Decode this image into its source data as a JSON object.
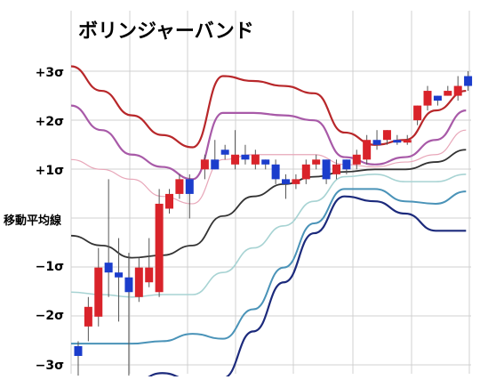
{
  "chart_data": {
    "type": "candlestick",
    "title": "ボリンジャーバンド",
    "band_labels": [
      "+3σ",
      "+2σ",
      "+1σ",
      "移動平均線",
      "−1σ",
      "−2σ",
      "−3σ"
    ],
    "ylim": [
      -4.2,
      4.2
    ],
    "xlim": [
      0,
      36
    ],
    "candles": [
      {
        "x": 0.7,
        "open": -2.6,
        "close": -2.8,
        "high": -2.5,
        "low": -3.2,
        "color": "blue"
      },
      {
        "x": 1.7,
        "open": -2.2,
        "close": -1.8,
        "high": -1.6,
        "low": -2.5,
        "color": "red"
      },
      {
        "x": 2.7,
        "open": -2.0,
        "close": -1.0,
        "high": -0.6,
        "low": -2.2,
        "color": "red"
      },
      {
        "x": 3.7,
        "open": -0.9,
        "close": -1.1,
        "high": 0.8,
        "low": -1.6,
        "color": "blue"
      },
      {
        "x": 4.7,
        "open": -1.1,
        "close": -1.2,
        "high": -0.4,
        "low": -2.1,
        "color": "blue"
      },
      {
        "x": 5.7,
        "open": -1.2,
        "close": -1.5,
        "high": -0.7,
        "low": -3.2,
        "color": "blue"
      },
      {
        "x": 6.7,
        "open": -1.6,
        "close": -1.0,
        "high": -0.8,
        "low": -1.7,
        "color": "red"
      },
      {
        "x": 7.7,
        "open": -1.3,
        "close": -1.0,
        "high": -0.4,
        "low": -1.4,
        "color": "red"
      },
      {
        "x": 8.7,
        "open": -1.5,
        "close": 0.3,
        "high": 0.6,
        "low": -1.6,
        "color": "red"
      },
      {
        "x": 9.7,
        "open": 0.2,
        "close": 0.5,
        "high": 0.6,
        "low": 0.1,
        "color": "red"
      },
      {
        "x": 10.7,
        "open": 0.5,
        "close": 0.8,
        "high": 0.9,
        "low": 0.4,
        "color": "red"
      },
      {
        "x": 11.7,
        "open": 0.8,
        "close": 0.5,
        "high": 0.9,
        "low": 0.0,
        "color": "blue"
      },
      {
        "x": 13.2,
        "open": 1.0,
        "close": 1.2,
        "high": 1.3,
        "low": 0.8,
        "color": "red"
      },
      {
        "x": 14.2,
        "open": 1.2,
        "close": 1.0,
        "high": 1.6,
        "low": 1.0,
        "color": "blue"
      },
      {
        "x": 15.2,
        "open": 1.3,
        "close": 1.4,
        "high": 1.5,
        "low": 1.2,
        "color": "blue"
      },
      {
        "x": 16.2,
        "open": 1.3,
        "close": 1.1,
        "high": 1.8,
        "low": 1.0,
        "color": "red"
      },
      {
        "x": 17.2,
        "open": 1.2,
        "close": 1.3,
        "high": 1.5,
        "low": 1.1,
        "color": "blue"
      },
      {
        "x": 18.2,
        "open": 1.1,
        "close": 1.3,
        "high": 1.4,
        "low": 1.0,
        "color": "red"
      },
      {
        "x": 19.2,
        "open": 1.2,
        "close": 1.1,
        "high": 1.2,
        "low": 1.0,
        "color": "blue"
      },
      {
        "x": 20.2,
        "open": 1.1,
        "close": 0.8,
        "high": 1.2,
        "low": 0.7,
        "color": "blue"
      },
      {
        "x": 21.2,
        "open": 0.8,
        "close": 0.7,
        "high": 0.9,
        "low": 0.4,
        "color": "blue"
      },
      {
        "x": 22.2,
        "open": 0.8,
        "close": 0.7,
        "high": 0.9,
        "low": 0.6,
        "color": "red"
      },
      {
        "x": 23.2,
        "open": 0.8,
        "close": 1.1,
        "high": 1.2,
        "low": 0.7,
        "color": "red"
      },
      {
        "x": 24.2,
        "open": 1.1,
        "close": 1.2,
        "high": 1.3,
        "low": 1.0,
        "color": "red"
      },
      {
        "x": 25.2,
        "open": 1.2,
        "close": 0.8,
        "high": 1.2,
        "low": 0.7,
        "color": "blue"
      },
      {
        "x": 26.2,
        "open": 0.9,
        "close": 1.1,
        "high": 1.2,
        "low": 0.8,
        "color": "red"
      },
      {
        "x": 27.2,
        "open": 1.0,
        "close": 1.2,
        "high": 1.2,
        "low": 0.9,
        "color": "blue"
      },
      {
        "x": 28.2,
        "open": 1.1,
        "close": 1.3,
        "high": 1.4,
        "low": 1.0,
        "color": "red"
      },
      {
        "x": 29.2,
        "open": 1.2,
        "close": 1.6,
        "high": 1.7,
        "low": 1.1,
        "color": "red"
      },
      {
        "x": 30.2,
        "open": 1.6,
        "close": 1.5,
        "high": 1.8,
        "low": 1.4,
        "color": "blue"
      },
      {
        "x": 31.2,
        "open": 1.6,
        "close": 1.8,
        "high": 1.8,
        "low": 1.5,
        "color": "red"
      },
      {
        "x": 32.2,
        "open": 1.6,
        "close": 1.6,
        "high": 1.7,
        "low": 1.5,
        "color": "blue"
      },
      {
        "x": 33.2,
        "open": 1.6,
        "close": 1.6,
        "high": 1.7,
        "low": 1.5,
        "color": "red"
      },
      {
        "x": 34.2,
        "open": 2.0,
        "close": 2.3,
        "high": 2.3,
        "low": 1.9,
        "color": "red"
      },
      {
        "x": 35.2,
        "open": 2.3,
        "close": 2.6,
        "high": 2.7,
        "low": 2.2,
        "color": "red"
      },
      {
        "x": 36.2,
        "open": 2.4,
        "close": 2.5,
        "high": 2.5,
        "low": 2.3,
        "color": "blue"
      },
      {
        "x": 37.2,
        "open": 2.5,
        "close": 2.6,
        "high": 2.7,
        "low": 2.5,
        "color": "red"
      },
      {
        "x": 38.2,
        "open": 2.5,
        "close": 2.7,
        "high": 2.9,
        "low": 2.4,
        "color": "red"
      },
      {
        "x": 39.2,
        "open": 2.7,
        "close": 2.9,
        "high": 3.0,
        "low": 2.6,
        "color": "blue"
      }
    ],
    "bands": [
      {
        "name": "+3σ",
        "color": "#b8272a",
        "width": 2.2,
        "points": [
          [
            0,
            3.1
          ],
          [
            3,
            2.6
          ],
          [
            6,
            2.1
          ],
          [
            9,
            1.7
          ],
          [
            12,
            1.45
          ],
          [
            15,
            2.9
          ],
          [
            18,
            2.8
          ],
          [
            21,
            2.7
          ],
          [
            24,
            2.55
          ],
          [
            27,
            1.75
          ],
          [
            30,
            1.5
          ],
          [
            33,
            1.6
          ],
          [
            36,
            2.2
          ],
          [
            39,
            2.6
          ]
        ]
      },
      {
        "name": "+2σ",
        "color": "#a85aa8",
        "width": 2.2,
        "points": [
          [
            0,
            2.3
          ],
          [
            3,
            1.8
          ],
          [
            6,
            1.3
          ],
          [
            9,
            1.05
          ],
          [
            12,
            0.8
          ],
          [
            15,
            2.15
          ],
          [
            18,
            2.15
          ],
          [
            21,
            2.1
          ],
          [
            24,
            2.0
          ],
          [
            27,
            1.25
          ],
          [
            30,
            1.1
          ],
          [
            33,
            1.25
          ],
          [
            36,
            1.6
          ],
          [
            39,
            2.2
          ]
        ]
      },
      {
        "name": "+1σ",
        "color": "#e8a7b9",
        "width": 1.2,
        "points": [
          [
            0,
            1.2
          ],
          [
            3,
            1.0
          ],
          [
            6,
            0.8
          ],
          [
            9,
            0.45
          ],
          [
            12,
            0.3
          ],
          [
            15,
            1.2
          ],
          [
            18,
            1.3
          ],
          [
            21,
            1.3
          ],
          [
            24,
            1.3
          ],
          [
            27,
            1.1
          ],
          [
            30,
            1.05
          ],
          [
            33,
            1.15
          ],
          [
            36,
            1.3
          ],
          [
            39,
            1.8
          ]
        ]
      },
      {
        "name": "移動平均線",
        "color": "#333333",
        "width": 1.8,
        "points": [
          [
            0,
            -0.35
          ],
          [
            3,
            -0.55
          ],
          [
            6,
            -0.8
          ],
          [
            9,
            -0.75
          ],
          [
            12,
            -0.55
          ],
          [
            15,
            0.05
          ],
          [
            18,
            0.45
          ],
          [
            21,
            0.7
          ],
          [
            24,
            0.85
          ],
          [
            27,
            0.95
          ],
          [
            30,
            1.0
          ],
          [
            33,
            1.0
          ],
          [
            36,
            1.15
          ],
          [
            39,
            1.4
          ]
        ]
      },
      {
        "name": "−1σ",
        "color": "#a7d3d3",
        "width": 1.6,
        "points": [
          [
            0,
            -1.5
          ],
          [
            3,
            -1.55
          ],
          [
            6,
            -1.6
          ],
          [
            9,
            -1.55
          ],
          [
            12,
            -1.55
          ],
          [
            15,
            -1.1
          ],
          [
            18,
            -0.6
          ],
          [
            21,
            -0.15
          ],
          [
            24,
            0.35
          ],
          [
            27,
            0.85
          ],
          [
            30,
            0.9
          ],
          [
            33,
            0.75
          ],
          [
            36,
            0.75
          ],
          [
            39,
            0.9
          ]
        ]
      },
      {
        "name": "−2σ",
        "color": "#4a93b8",
        "width": 2.0,
        "points": [
          [
            0,
            -2.55
          ],
          [
            3,
            -2.55
          ],
          [
            6,
            -2.55
          ],
          [
            9,
            -2.5
          ],
          [
            12,
            -2.35
          ],
          [
            15,
            -2.45
          ],
          [
            18,
            -1.85
          ],
          [
            21,
            -1.0
          ],
          [
            24,
            -0.1
          ],
          [
            27,
            0.6
          ],
          [
            30,
            0.6
          ],
          [
            33,
            0.35
          ],
          [
            36,
            0.3
          ],
          [
            39,
            0.55
          ]
        ]
      },
      {
        "name": "−3σ",
        "color": "#1c2a7c",
        "width": 2.2,
        "points": [
          [
            0,
            -3.6
          ],
          [
            3,
            -3.55
          ],
          [
            6,
            -3.35
          ],
          [
            9,
            -3.15
          ],
          [
            12,
            -3.3
          ],
          [
            15,
            -3.25
          ],
          [
            18,
            -2.3
          ],
          [
            21,
            -1.3
          ],
          [
            24,
            -0.3
          ],
          [
            27,
            0.45
          ],
          [
            30,
            0.35
          ],
          [
            33,
            0.1
          ],
          [
            36,
            -0.25
          ],
          [
            39,
            -0.25
          ]
        ]
      }
    ],
    "grid": true,
    "colors": {
      "up_candle": "#d9232a",
      "down_candle": "#1b3dcc",
      "grid": "#d0d0d0"
    }
  }
}
